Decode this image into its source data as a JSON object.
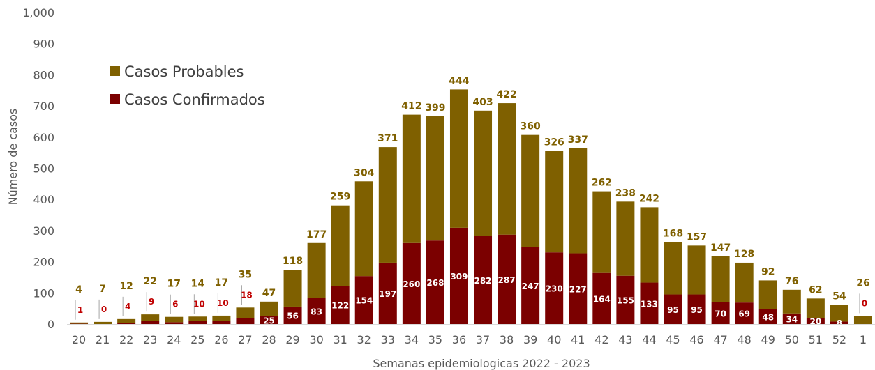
{
  "chart_data": {
    "type": "bar",
    "stacked": true,
    "title": "",
    "xlabel": "Semanas epidemiologicas 2022 - 2023",
    "ylabel": "Número de casos",
    "ylim": [
      0,
      1000
    ],
    "yticks": [
      "0",
      "100",
      "200",
      "300",
      "400",
      "500",
      "600",
      "700",
      "800",
      "900",
      "1,000"
    ],
    "categories": [
      "20",
      "21",
      "22",
      "23",
      "24",
      "25",
      "26",
      "27",
      "28",
      "29",
      "30",
      "31",
      "32",
      "33",
      "34",
      "35",
      "36",
      "37",
      "38",
      "39",
      "40",
      "41",
      "42",
      "43",
      "44",
      "45",
      "46",
      "47",
      "48",
      "49",
      "50",
      "51",
      "52",
      "1"
    ],
    "series": [
      {
        "name": "Casos Confirmados",
        "color": "#7b0000",
        "values": [
          1,
          0,
          4,
          9,
          6,
          10,
          10,
          18,
          25,
          56,
          83,
          122,
          154,
          197,
          260,
          268,
          309,
          282,
          287,
          247,
          230,
          227,
          164,
          155,
          133,
          95,
          95,
          70,
          69,
          48,
          34,
          20,
          8,
          0
        ]
      },
      {
        "name": "Casos Probables",
        "color": "#7f6000",
        "values": [
          4,
          7,
          12,
          22,
          17,
          14,
          17,
          35,
          47,
          118,
          177,
          259,
          304,
          371,
          412,
          399,
          444,
          403,
          422,
          360,
          326,
          337,
          262,
          238,
          242,
          168,
          157,
          147,
          128,
          92,
          76,
          62,
          54,
          26
        ]
      }
    ],
    "legend_position": "top-left",
    "grid": false
  }
}
